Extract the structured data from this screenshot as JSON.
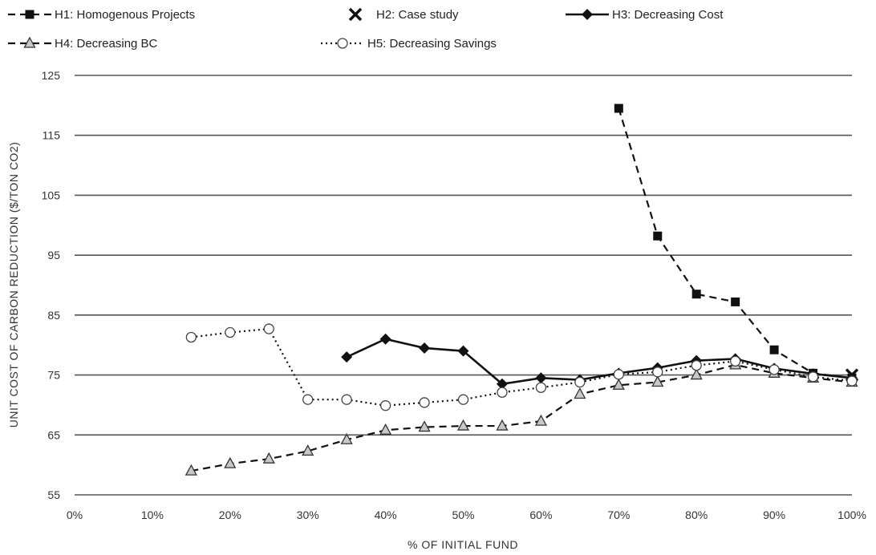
{
  "chart_data": {
    "type": "line",
    "title": "",
    "xlabel": "% OF INITIAL FUND",
    "ylabel": "UNIT COST OF CARBON REDUCTION ($/TON CO2)",
    "xlim": [
      0,
      100
    ],
    "ylim": [
      55,
      125
    ],
    "x_ticks": [
      0,
      10,
      20,
      30,
      40,
      50,
      60,
      70,
      80,
      90,
      100
    ],
    "x_tick_labels": [
      "0%",
      "10%",
      "20%",
      "30%",
      "40%",
      "50%",
      "60%",
      "70%",
      "80%",
      "90%",
      "100%"
    ],
    "y_ticks": [
      55,
      65,
      75,
      85,
      95,
      105,
      115,
      125
    ],
    "y_tick_labels": [
      "55",
      "65",
      "75",
      "85",
      "95",
      "105",
      "115",
      "125"
    ],
    "grid": "horizontal",
    "legend_position": "top",
    "series": [
      {
        "name": "H1: Homogenous Projects",
        "line": "dashed",
        "marker": "square",
        "color": "#111111",
        "x": [
          70,
          75,
          80,
          85,
          90,
          95,
          100
        ],
        "y": [
          119.5,
          98.2,
          88.5,
          87.2,
          79.2,
          75.3,
          74.5
        ]
      },
      {
        "name": "H2: Case study",
        "line": "none",
        "marker": "x",
        "color": "#111111",
        "x": [
          100
        ],
        "y": [
          75
        ]
      },
      {
        "name": "H3: Decreasing Cost",
        "line": "solid",
        "marker": "diamond",
        "color": "#111111",
        "x": [
          35,
          40,
          45,
          50,
          55,
          60,
          65,
          70,
          75,
          80,
          85,
          90,
          95,
          100
        ],
        "y": [
          78,
          81,
          79.5,
          79,
          73.5,
          74.5,
          74.2,
          75.3,
          76.2,
          77.4,
          77.7,
          76.1,
          75.2,
          74.5
        ]
      },
      {
        "name": "H4: Decreasing BC",
        "line": "dashed",
        "marker": "triangle",
        "color": "#111111",
        "x": [
          15,
          20,
          25,
          30,
          35,
          40,
          45,
          50,
          55,
          60,
          65,
          70,
          75,
          80,
          85,
          90,
          95,
          100
        ],
        "y": [
          59,
          60.2,
          61,
          62.3,
          64.2,
          65.8,
          66.3,
          66.5,
          66.5,
          67.3,
          71.8,
          73.3,
          73.8,
          75,
          76.7,
          75.3,
          74.5,
          73.8
        ]
      },
      {
        "name": "H5: Decreasing Savings",
        "line": "dotted",
        "marker": "circle-open",
        "color": "#111111",
        "x": [
          15,
          20,
          25,
          30,
          35,
          40,
          45,
          50,
          55,
          60,
          65,
          70,
          75,
          80,
          85,
          90,
          95,
          100
        ],
        "y": [
          81.3,
          82.1,
          82.7,
          70.9,
          70.9,
          69.9,
          70.4,
          70.9,
          72.1,
          72.9,
          73.8,
          75.1,
          75.5,
          76.6,
          77.3,
          75.9,
          74.7,
          74
        ]
      }
    ]
  }
}
